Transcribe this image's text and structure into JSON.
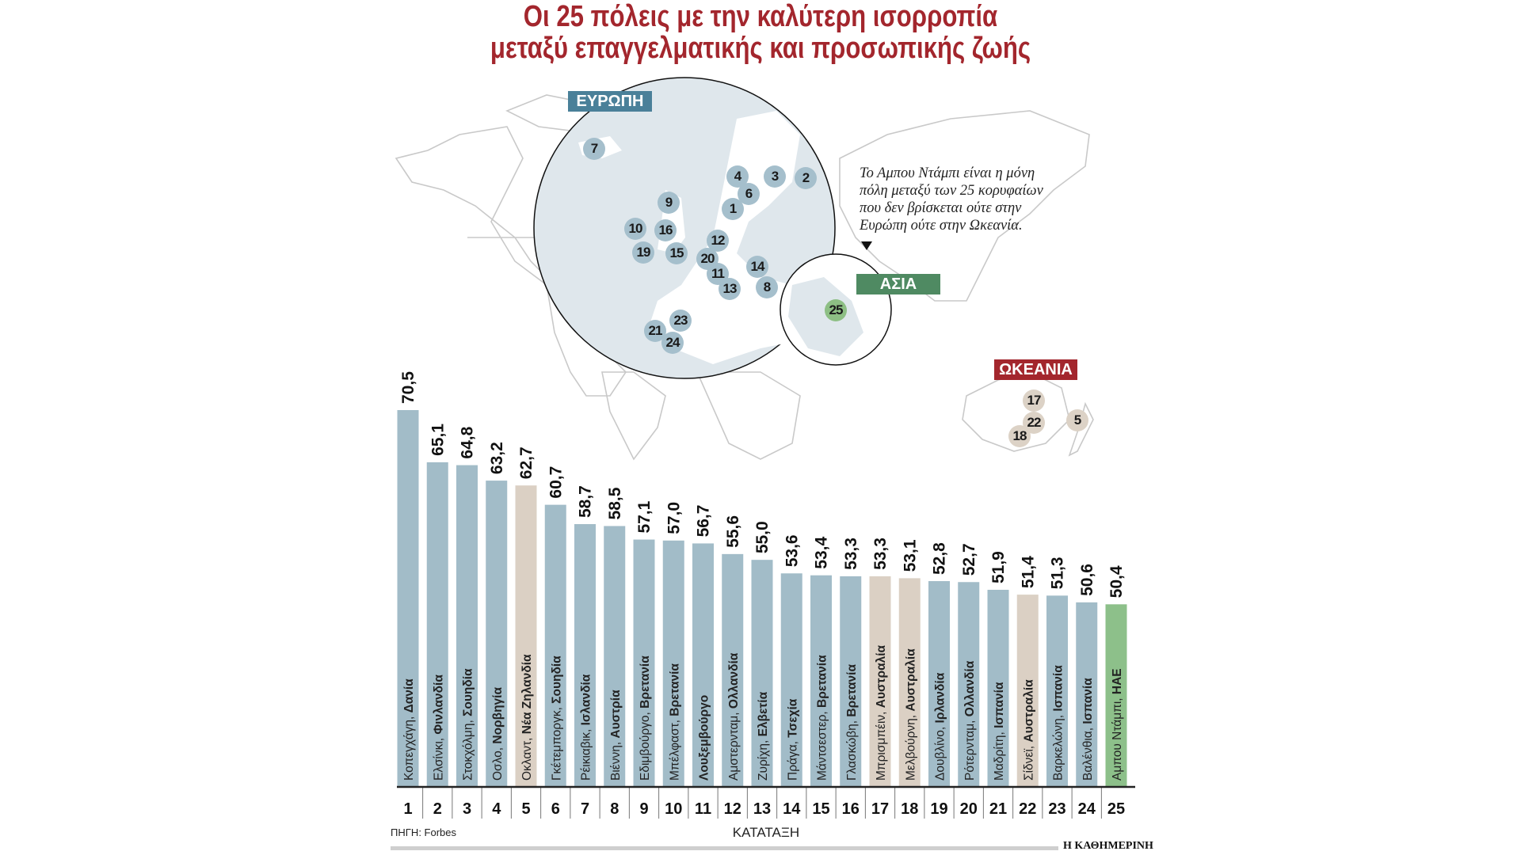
{
  "title_line1": "Οι 25 πόλεις με την καλύτερη ισορροπία",
  "title_line2": "μεταξύ επαγγελματικής και προσωπικής ζωής",
  "map": {
    "regions": {
      "europe": "ΕΥΡΩΠΗ",
      "asia": "ΑΣΙΑ",
      "oceania": "ΩΚΕΑΝΙΑ"
    },
    "note": "Το Αμπου Ντάμπι είναι η μόνη\nπόλη μεταξύ των 25 κορυφαίων\nπου δεν βρίσκεται ούτε στην\nΕυρώπη ούτε στην Ωκεανία.",
    "colors": {
      "europe": "#4a8099",
      "asia": "#4f8a62",
      "oceania": "#a3262d"
    }
  },
  "chart_data": {
    "type": "bar",
    "title": "Οι 25 πόλεις με την καλύτερη ισορροπία μεταξύ επαγγελματικής και προσωπικής ζωής",
    "xlabel": "ΚΑΤΑΤΑΞΗ",
    "ylabel": "",
    "source": "ΠΗΓΗ: Forbes",
    "categories": [
      "1",
      "2",
      "3",
      "4",
      "5",
      "6",
      "7",
      "8",
      "9",
      "10",
      "11",
      "12",
      "13",
      "14",
      "15",
      "16",
      "17",
      "18",
      "19",
      "20",
      "21",
      "22",
      "23",
      "24",
      "25"
    ],
    "values": [
      70.5,
      65.1,
      64.8,
      63.2,
      62.7,
      60.7,
      58.7,
      58.5,
      57.1,
      57.0,
      56.7,
      55.6,
      55.0,
      53.6,
      53.4,
      53.3,
      53.3,
      53.1,
      52.8,
      52.7,
      51.9,
      51.4,
      51.3,
      50.6,
      50.4
    ],
    "value_labels": [
      "70,5",
      "65,1",
      "64,8",
      "63,2",
      "62,7",
      "60,7",
      "58,7",
      "58,5",
      "57,1",
      "57,0",
      "56,7",
      "55,6",
      "55,0",
      "53,6",
      "53,4",
      "53,3",
      "53,3",
      "53,1",
      "52,8",
      "52,7",
      "51,9",
      "51,4",
      "51,3",
      "50,6",
      "50,4"
    ],
    "cities": [
      {
        "city": "Κοπεγχάγη, ",
        "country": "Δανία",
        "region": "europe"
      },
      {
        "city": "Ελσίνκι, ",
        "country": "Φινλανδία",
        "region": "europe"
      },
      {
        "city": "Στοκχόλμη, ",
        "country": "Σουηδία",
        "region": "europe"
      },
      {
        "city": "Οσλο, ",
        "country": "Νορβηγία",
        "region": "europe"
      },
      {
        "city": "Οκλαντ, ",
        "country": "Νέα Ζηλανδία",
        "region": "oceania"
      },
      {
        "city": "Γκέτεμποργκ, ",
        "country": "Σουηδία",
        "region": "europe"
      },
      {
        "city": "Ρέικιαβικ, ",
        "country": "Ισλανδία",
        "region": "europe"
      },
      {
        "city": "Βιέννη, ",
        "country": "Αυστρία",
        "region": "europe"
      },
      {
        "city": "Εδιμβούργο, ",
        "country": "Βρετανία",
        "region": "europe"
      },
      {
        "city": "Μπέλφαστ, ",
        "country": "Βρετανία",
        "region": "europe"
      },
      {
        "city": "",
        "country": "Λουξεμβούργο",
        "region": "europe"
      },
      {
        "city": "Αμστερνταμ, ",
        "country": "Ολλανδία",
        "region": "europe"
      },
      {
        "city": "Ζυρίχη, ",
        "country": "Ελβετία",
        "region": "europe"
      },
      {
        "city": "Πράγα, ",
        "country": "Τσεχία",
        "region": "europe"
      },
      {
        "city": "Μάντσεστερ, ",
        "country": "Βρετανία",
        "region": "europe"
      },
      {
        "city": "Γλασκώβη, ",
        "country": "Βρετανία",
        "region": "europe"
      },
      {
        "city": "Μπρισμπέιν, ",
        "country": "Αυστραλία",
        "region": "oceania"
      },
      {
        "city": "Μελβούρνη, ",
        "country": "Αυστραλία",
        "region": "oceania"
      },
      {
        "city": "Δουβλίνο, ",
        "country": "Ιρλανδία",
        "region": "europe"
      },
      {
        "city": "Ρότερνταμ, ",
        "country": "Ολλανδία",
        "region": "europe"
      },
      {
        "city": "Μαδρίτη, ",
        "country": "Ισπανία",
        "region": "europe"
      },
      {
        "city": "Σίδνεϊ, ",
        "country": "Αυστραλία",
        "region": "oceania"
      },
      {
        "city": "Βαρκελώνη, ",
        "country": "Ισπανία",
        "region": "europe"
      },
      {
        "city": "Βαλένθια, ",
        "country": "Ισπανία",
        "region": "europe"
      },
      {
        "city": "Αμπου Ντάμπι, ",
        "country": "ΗΑΕ",
        "region": "asia"
      }
    ],
    "ylim": [
      31.5,
      72
    ],
    "grid": false,
    "colors": {
      "europe": "#a2bcc8",
      "oceania": "#dbd0c4",
      "asia": "#8dc08a"
    }
  },
  "brand": "Η ΚΑΘΗΜΕΡΙΝΗ"
}
